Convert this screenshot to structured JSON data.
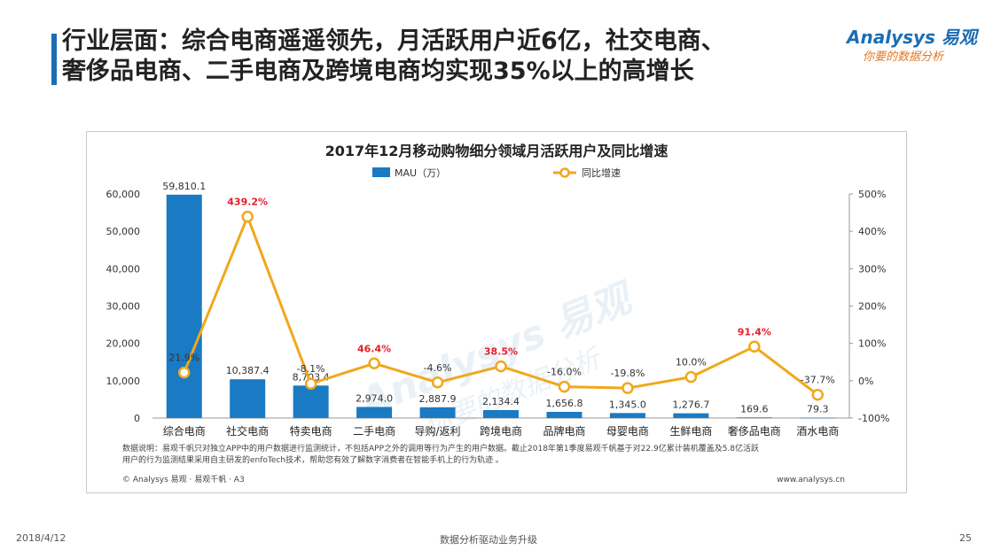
{
  "slide": {
    "title_line1": "行业层面：综合电商遥遥领先，月活跃用户近6亿，社交电商、",
    "title_line2": "奢侈品电商、二手电商及跨境电商均实现35%以上的高增长",
    "date": "2018/4/12",
    "slogan": "数据分析驱动业务升级",
    "page_number": "25"
  },
  "logo": {
    "name": "Analysys 易观",
    "tagline": "你要的数据分析",
    "icon": "analysys-logo"
  },
  "chart_note": {
    "line1": "数据说明：易观千帆只对独立APP中的用户数据进行监测统计，不包括APP之外的调用等行为产生的用户数据。截止2018年第1季度易观千帆基于对22.9亿累计装机覆盖及5.8亿活跃",
    "line2": "用户的行为监测结果采用自主研发的enfoTech技术，帮助您有效了解数字消费者在智能手机上的行为轨迹 。",
    "copyright": "© Analysys 易观 · 易观千帆 · A3",
    "website": "www.analysys.cn"
  },
  "chart_data": {
    "type": "bar+line",
    "title": "2017年12月移动购物细分领域月活跃用户及同比增速",
    "categories": [
      "综合电商",
      "社交电商",
      "特卖电商",
      "二手电商",
      "导购/返利",
      "跨境电商",
      "品牌电商",
      "母婴电商",
      "生鲜电商",
      "奢侈品电商",
      "酒水电商"
    ],
    "series": [
      {
        "name": "MAU（万）",
        "type": "bar",
        "axis": "left",
        "color": "#1a7ac4",
        "values": [
          59810.1,
          10387.4,
          8703.4,
          2974.0,
          2887.9,
          2134.4,
          1656.8,
          1345.0,
          1276.7,
          169.6,
          79.3
        ],
        "labels": [
          "59,810.1",
          "10,387.4",
          "8,703.4",
          "2,974.0",
          "2,887.9",
          "2,134.4",
          "1,656.8",
          "1,345.0",
          "1,276.7",
          "169.6",
          "79.3"
        ]
      },
      {
        "name": "同比增速",
        "type": "line",
        "axis": "right",
        "color": "#f0a81c",
        "values": [
          21.9,
          439.2,
          -8.1,
          46.4,
          -4.6,
          38.5,
          -16.0,
          -19.8,
          10.0,
          91.4,
          -37.7
        ],
        "labels": [
          "21.9%",
          "439.2%",
          "-8.1%",
          "46.4%",
          "-4.6%",
          "38.5%",
          "-16.0%",
          "-19.8%",
          "10.0%",
          "91.4%",
          "-37.7%"
        ],
        "highlighted": [
          false,
          true,
          false,
          true,
          false,
          true,
          false,
          false,
          false,
          true,
          false
        ],
        "highlight_color": "#e0202a"
      }
    ],
    "y_left": {
      "range": [
        0,
        60000
      ],
      "ticks": [
        0,
        10000,
        20000,
        30000,
        40000,
        50000,
        60000
      ],
      "tick_labels": [
        "0",
        "10,000",
        "20,000",
        "30,000",
        "40,000",
        "50,000",
        "60,000"
      ]
    },
    "y_right": {
      "range": [
        -100,
        500
      ],
      "ticks": [
        -100,
        0,
        100,
        200,
        300,
        400,
        500
      ],
      "tick_labels": [
        "-100%",
        "0%",
        "100%",
        "200%",
        "300%",
        "400%",
        "500%"
      ]
    },
    "grid": false,
    "legend_position": "top-center",
    "watermark": {
      "brand": "Analysys 易观",
      "slogan": "你要的数据分析"
    }
  }
}
